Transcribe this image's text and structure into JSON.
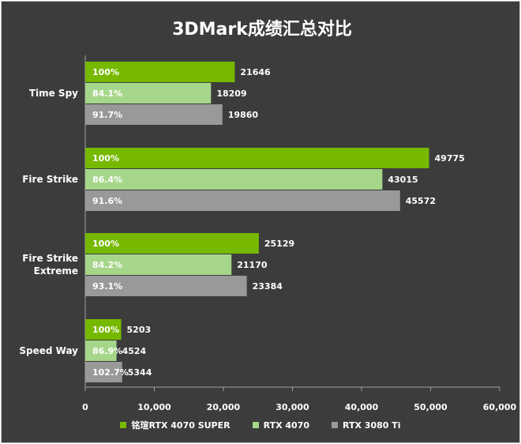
{
  "chart_data": {
    "type": "bar",
    "orientation": "horizontal",
    "title": "3DMark成绩汇总对比",
    "categories": [
      "Time Spy",
      "Fire Strike",
      "Fire Strike Extreme",
      "Speed Way"
    ],
    "category_lines": [
      [
        "Time Spy"
      ],
      [
        "Fire Strike"
      ],
      [
        "Fire Strike",
        "Extreme"
      ],
      [
        "Speed Way"
      ]
    ],
    "series": [
      {
        "name": "铭瑄RTX 4070 SUPER",
        "color": "#76b900",
        "values": [
          21646,
          49775,
          25129,
          5203
        ],
        "percents": [
          "100%",
          "100%",
          "100%",
          "100%"
        ]
      },
      {
        "name": "RTX 4070",
        "color": "#a6d68a",
        "values": [
          18209,
          43015,
          21170,
          4524
        ],
        "percents": [
          "84.1%",
          "86.4%",
          "84.2%",
          "86.9%"
        ]
      },
      {
        "name": "RTX 3080 Ti",
        "color": "#999999",
        "values": [
          19860,
          45572,
          23384,
          5344
        ],
        "percents": [
          "91.7%",
          "91.6%",
          "93.1%",
          "102.7%"
        ]
      }
    ],
    "xlim": [
      0,
      60000
    ],
    "xticks": [
      0,
      10000,
      20000,
      30000,
      40000,
      50000,
      60000
    ],
    "xtick_labels": [
      "0",
      "10,000",
      "20,000",
      "30,000",
      "40,000",
      "50,000",
      "60,000"
    ],
    "legend_position": "bottom",
    "grid": false
  }
}
